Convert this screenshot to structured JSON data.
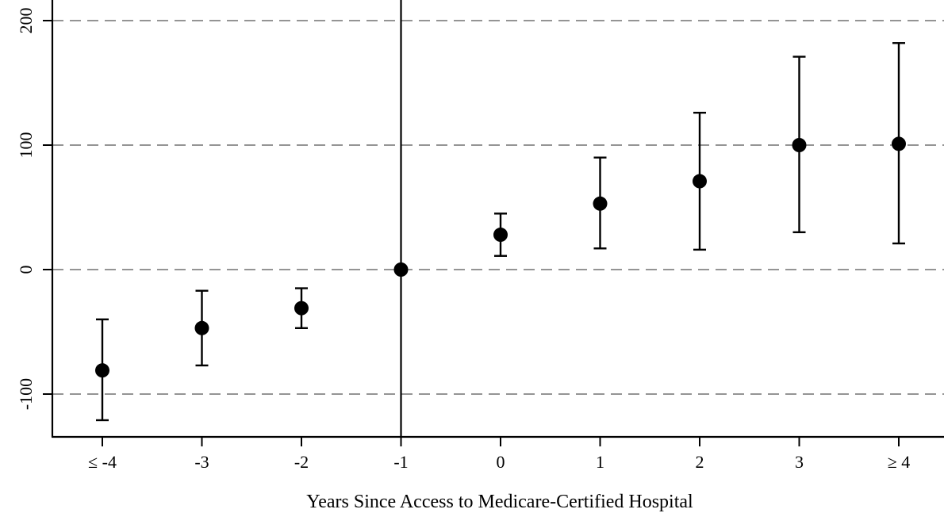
{
  "chart_data": {
    "type": "scatter",
    "title": "",
    "xlabel": "Years Since Access to Medicare-Certified Hospital",
    "ylabel": "",
    "categories": [
      "≤ -4",
      "-3",
      "-2",
      "-1",
      "0",
      "1",
      "2",
      "3",
      "≥ 4"
    ],
    "ylim": [
      -134,
      214
    ],
    "yticks": [
      -100,
      0,
      100,
      200
    ],
    "ytick_labels": [
      "-100",
      "0",
      "100",
      "200"
    ],
    "grid": "horizontal-dashed",
    "reference_line_at": "-1",
    "series": [
      {
        "estimates": [
          -81,
          -47,
          -31,
          0,
          28,
          53,
          71,
          100,
          101
        ],
        "ci_low": [
          -121,
          -77,
          -47,
          0,
          11,
          17,
          16,
          30,
          21
        ],
        "ci_high": [
          -40,
          -17,
          -15,
          0,
          45,
          90,
          126,
          171,
          182
        ]
      }
    ],
    "colors": {
      "marks": "#000000",
      "grid": "#555555"
    }
  }
}
